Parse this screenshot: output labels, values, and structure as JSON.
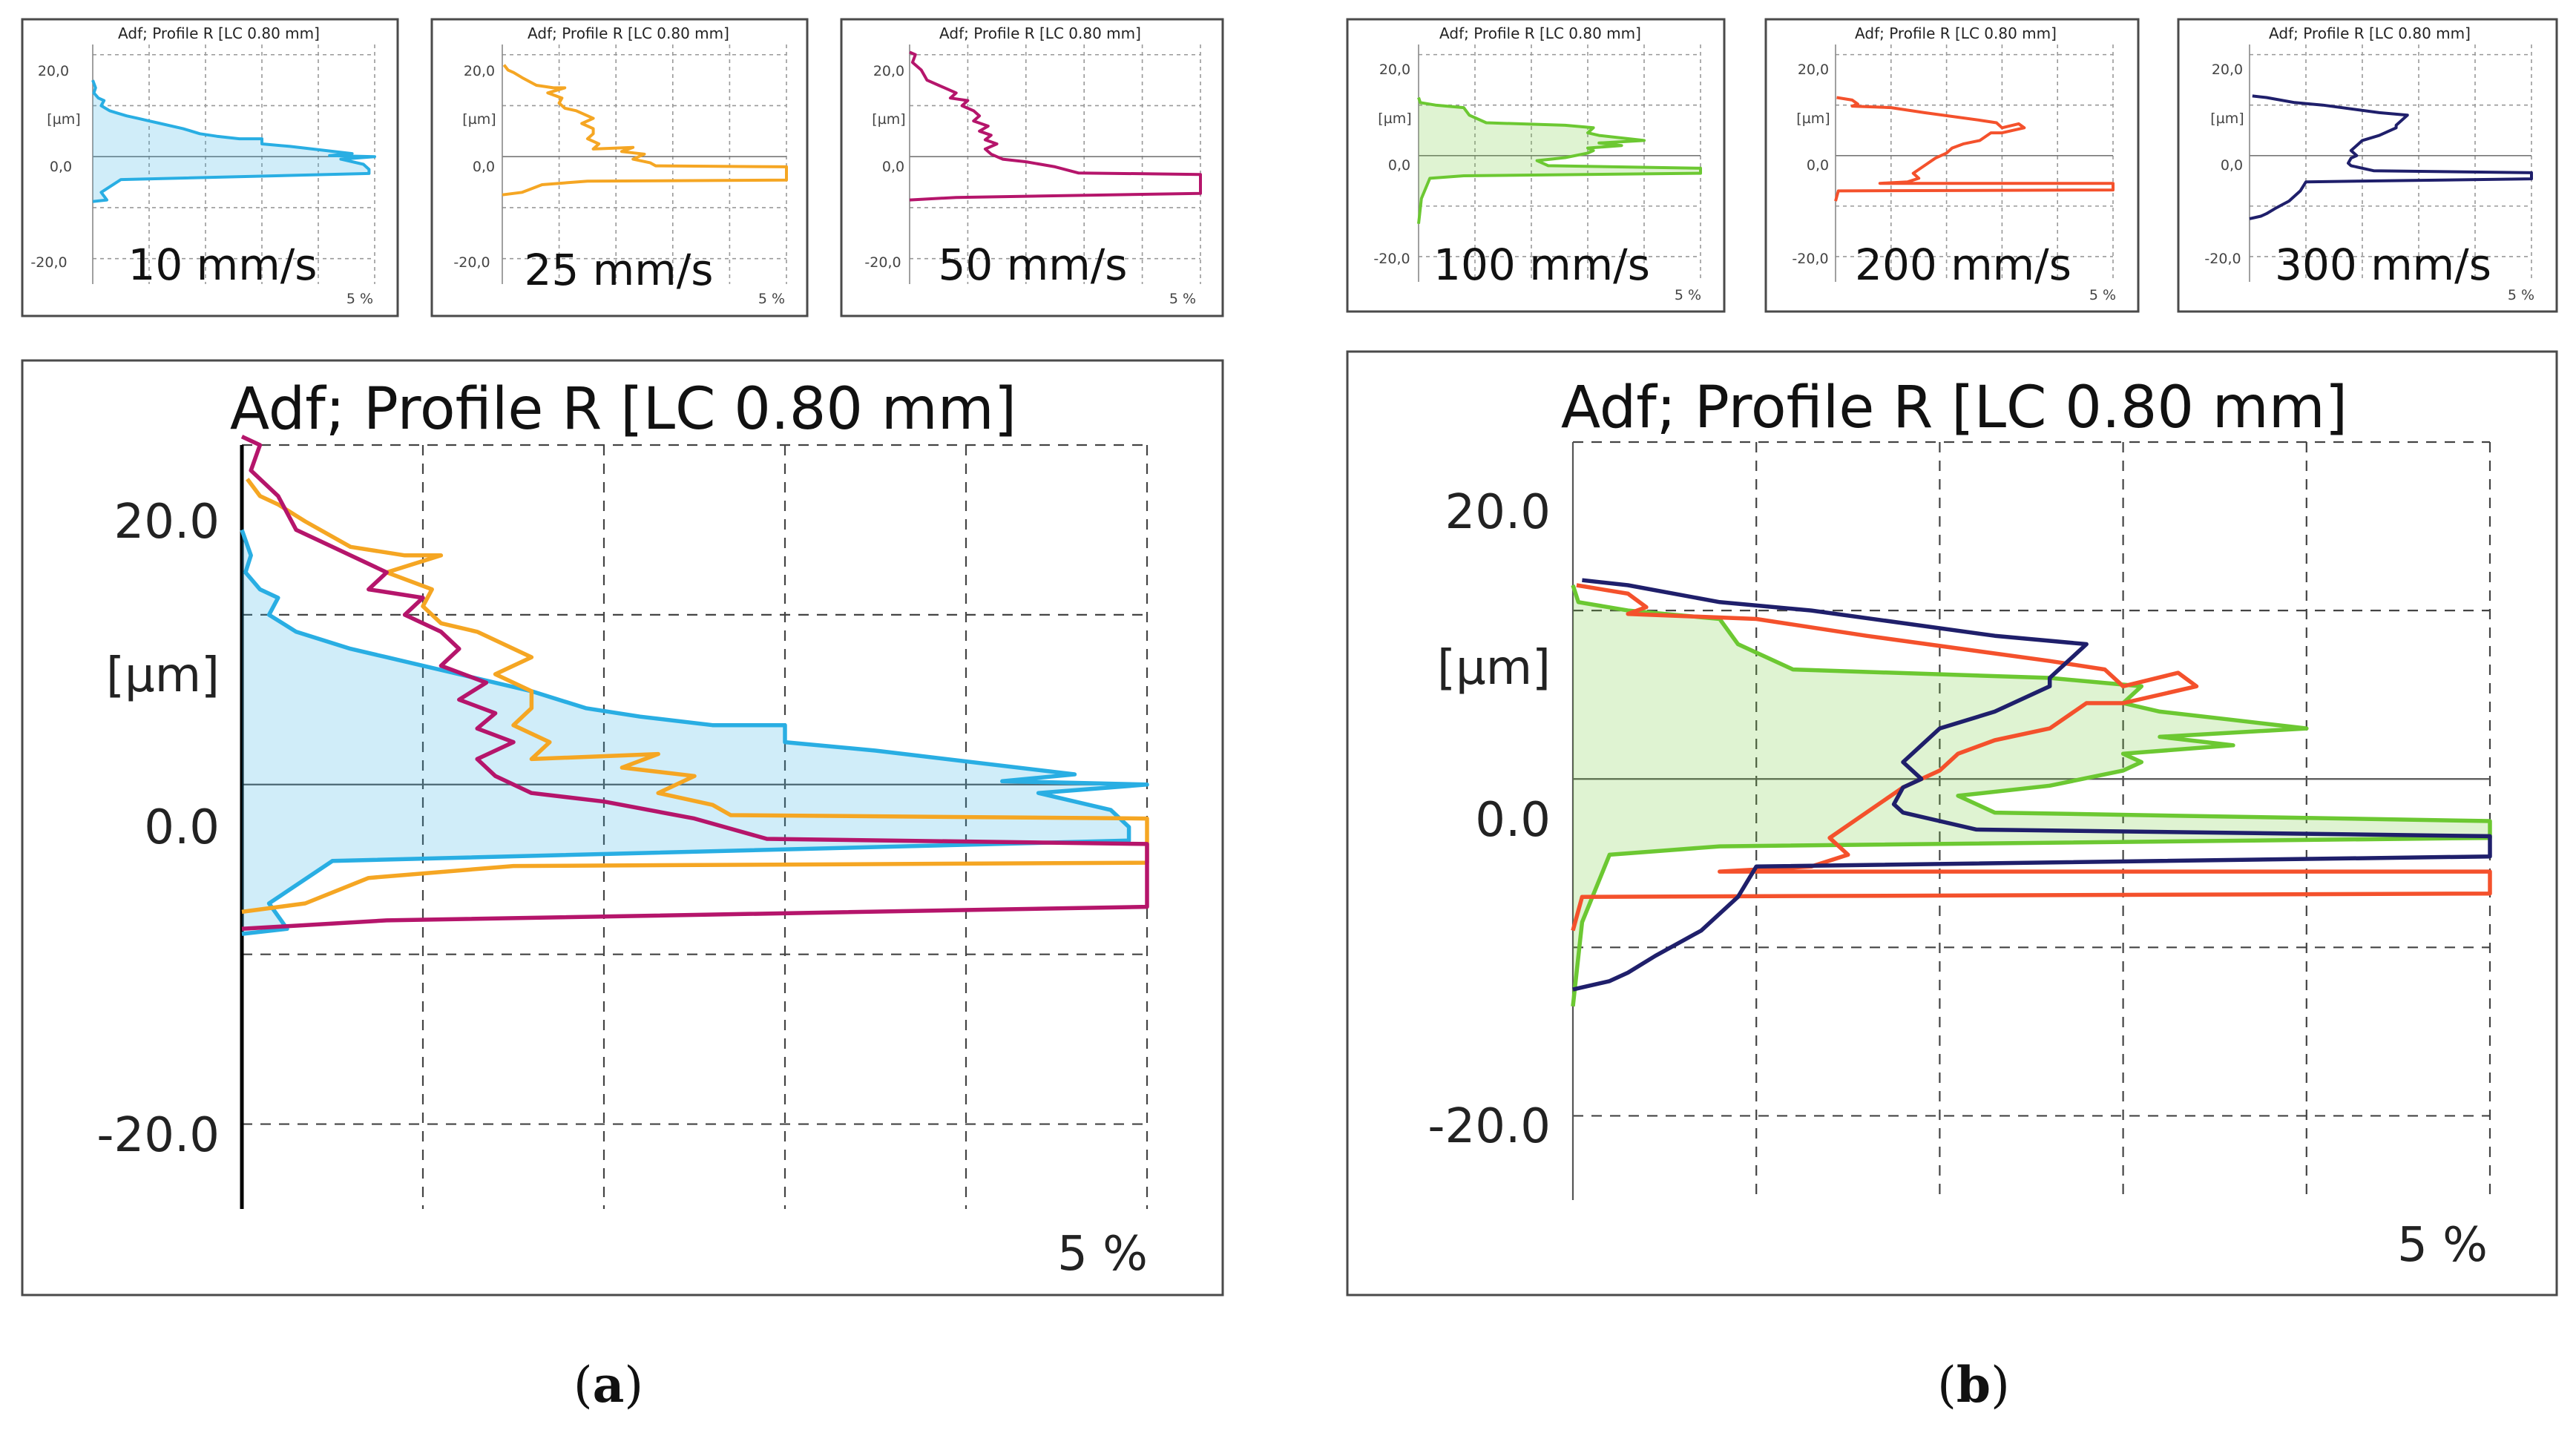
{
  "chart_data": [
    {
      "id": "a-10",
      "type": "line",
      "title": "Adf; Profile R [LC 0.80 mm]",
      "label": "10 mm/s",
      "ylabel": "[µm]",
      "y_ticks": [
        "20,0",
        "0,0",
        "-20,0"
      ],
      "x_tick": "5 %",
      "xlim": [
        0,
        5
      ],
      "ylim": [
        -25,
        22
      ],
      "series": [
        {
          "name": "10 mm/s",
          "color": "#29aee3",
          "fill": true,
          "points": [
            [
              0,
              15
            ],
            [
              0.05,
              13.5
            ],
            [
              0.02,
              12.5
            ],
            [
              0.1,
              11.5
            ],
            [
              0.2,
              11
            ],
            [
              0.15,
              10
            ],
            [
              0.3,
              9
            ],
            [
              0.45,
              8.5
            ],
            [
              0.6,
              8
            ],
            [
              0.8,
              7.5
            ],
            [
              1.0,
              7
            ],
            [
              1.2,
              6.5
            ],
            [
              1.6,
              5.5
            ],
            [
              1.9,
              4.5
            ],
            [
              2.2,
              4
            ],
            [
              2.6,
              3.5
            ],
            [
              3.0,
              3.5
            ],
            [
              3.0,
              2.5
            ],
            [
              3.5,
              2
            ],
            [
              4.6,
              0.6
            ],
            [
              4.2,
              0.2
            ],
            [
              5.0,
              0
            ],
            [
              4.4,
              -0.5
            ],
            [
              4.8,
              -1.5
            ],
            [
              4.9,
              -2.5
            ],
            [
              4.9,
              -3.3
            ],
            [
              0.5,
              -4.5
            ],
            [
              0.15,
              -7
            ],
            [
              0.25,
              -8.5
            ],
            [
              0,
              -8.8
            ]
          ]
        }
      ]
    },
    {
      "id": "a-25",
      "type": "line",
      "title": "Adf; Profile R [LC 0.80 mm]",
      "label": "25 mm/s",
      "ylabel": "[µm]",
      "y_ticks": [
        "20,0",
        "0,0",
        "-20,0"
      ],
      "x_tick": "5 %",
      "xlim": [
        0,
        5
      ],
      "ylim": [
        -25,
        22
      ],
      "series": [
        {
          "name": "25 mm/s",
          "color": "#f5a623",
          "fill": false,
          "points": [
            [
              0.03,
              18
            ],
            [
              0.1,
              17
            ],
            [
              0.2,
              16.5
            ],
            [
              0.35,
              15.5
            ],
            [
              0.6,
              14
            ],
            [
              0.9,
              13.5
            ],
            [
              1.1,
              13.5
            ],
            [
              0.8,
              12.5
            ],
            [
              1.05,
              11.5
            ],
            [
              1.0,
              10.5
            ],
            [
              1.1,
              9.5
            ],
            [
              1.3,
              9
            ],
            [
              1.6,
              7.5
            ],
            [
              1.4,
              6.5
            ],
            [
              1.6,
              5.5
            ],
            [
              1.6,
              4.5
            ],
            [
              1.5,
              3.5
            ],
            [
              1.7,
              2.5
            ],
            [
              1.6,
              1.5
            ],
            [
              2.3,
              1.8
            ],
            [
              2.1,
              1
            ],
            [
              2.5,
              0.5
            ],
            [
              2.3,
              -0.5
            ],
            [
              2.6,
              -1.2
            ],
            [
              2.7,
              -1.8
            ],
            [
              5.0,
              -2.0
            ],
            [
              5.0,
              -4.6
            ],
            [
              1.5,
              -4.8
            ],
            [
              0.7,
              -5.5
            ],
            [
              0.35,
              -7
            ],
            [
              0,
              -7.5
            ]
          ]
        }
      ]
    },
    {
      "id": "a-50",
      "type": "line",
      "title": "Adf; Profile R [LC 0.80 mm]",
      "label": "50 mm/s",
      "ylabel": "[µm]",
      "y_ticks": [
        "20,0",
        "0,0",
        "-20,0"
      ],
      "x_tick": "5 %",
      "xlim": [
        0,
        5
      ],
      "ylim": [
        -25,
        22
      ],
      "series": [
        {
          "name": "50 mm/s",
          "color": "#b5156b",
          "fill": false,
          "points": [
            [
              0,
              20.5
            ],
            [
              0.1,
              20
            ],
            [
              0.05,
              18.5
            ],
            [
              0.2,
              17
            ],
            [
              0.3,
              15
            ],
            [
              0.5,
              14
            ],
            [
              0.8,
              12.5
            ],
            [
              0.7,
              11.5
            ],
            [
              1.0,
              11
            ],
            [
              0.9,
              10
            ],
            [
              1.1,
              9
            ],
            [
              1.2,
              8
            ],
            [
              1.1,
              7
            ],
            [
              1.35,
              6
            ],
            [
              1.2,
              5
            ],
            [
              1.4,
              4.2
            ],
            [
              1.3,
              3.3
            ],
            [
              1.5,
              2.5
            ],
            [
              1.3,
              1.5
            ],
            [
              1.4,
              0.5
            ],
            [
              1.6,
              -0.5
            ],
            [
              2.0,
              -1.0
            ],
            [
              2.5,
              -2
            ],
            [
              2.9,
              -3.2
            ],
            [
              5.0,
              -3.5
            ],
            [
              5.0,
              -7.2
            ],
            [
              0.8,
              -8
            ],
            [
              0,
              -8.5
            ]
          ]
        }
      ]
    },
    {
      "id": "b-100",
      "type": "line",
      "title": "Adf; Profile R [LC 0.80 mm]",
      "label": "100 mm/s",
      "ylabel": "[µm]",
      "y_ticks": [
        "20,0",
        "0,0",
        "-20,0"
      ],
      "x_tick": "5 %",
      "xlim": [
        0,
        5
      ],
      "ylim": [
        -25,
        22
      ],
      "series": [
        {
          "name": "100 mm/s",
          "color": "#6cc832",
          "fill": true,
          "points": [
            [
              0,
              11.5
            ],
            [
              0.03,
              10.5
            ],
            [
              0.3,
              10
            ],
            [
              0.8,
              9.5
            ],
            [
              0.9,
              8
            ],
            [
              1.2,
              6.5
            ],
            [
              2.6,
              6
            ],
            [
              3.1,
              5.5
            ],
            [
              3.0,
              4.5
            ],
            [
              3.2,
              4
            ],
            [
              3.6,
              3.5
            ],
            [
              4.0,
              3
            ],
            [
              3.2,
              2.5
            ],
            [
              3.6,
              2
            ],
            [
              3.0,
              1.5
            ],
            [
              3.1,
              1.0
            ],
            [
              3.0,
              0.5
            ],
            [
              2.6,
              -0.4
            ],
            [
              2.1,
              -1
            ],
            [
              2.3,
              -2
            ],
            [
              5.0,
              -2.5
            ],
            [
              5.0,
              -3.5
            ],
            [
              0.8,
              -4
            ],
            [
              0.2,
              -4.5
            ],
            [
              0.05,
              -8.5
            ],
            [
              0,
              -13.5
            ]
          ]
        }
      ]
    },
    {
      "id": "b-200",
      "type": "line",
      "title": "Adf; Profile R [LC 0.80 mm]",
      "label": "200 mm/s",
      "ylabel": "[µm]",
      "y_ticks": [
        "20,0",
        "0,0",
        "-20,0"
      ],
      "x_tick": "5 %",
      "xlim": [
        0,
        5
      ],
      "ylim": [
        -25,
        22
      ],
      "series": [
        {
          "name": "200 mm/s",
          "color": "#f4512c",
          "fill": false,
          "points": [
            [
              0.02,
              11.5
            ],
            [
              0.3,
              11
            ],
            [
              0.4,
              10.2
            ],
            [
              0.3,
              9.8
            ],
            [
              1.0,
              9.5
            ],
            [
              1.6,
              8.5
            ],
            [
              2.6,
              7
            ],
            [
              2.9,
              6.5
            ],
            [
              3.0,
              5.5
            ],
            [
              3.3,
              6.3
            ],
            [
              3.4,
              5.5
            ],
            [
              3.0,
              4.5
            ],
            [
              2.8,
              4.5
            ],
            [
              2.6,
              3
            ],
            [
              2.3,
              2.3
            ],
            [
              2.1,
              1.5
            ],
            [
              2.0,
              0.5
            ],
            [
              1.8,
              -0.5
            ],
            [
              1.6,
              -2
            ],
            [
              1.4,
              -3.5
            ],
            [
              1.5,
              -4.5
            ],
            [
              1.3,
              -5.2
            ],
            [
              0.8,
              -5.5
            ],
            [
              5.0,
              -5.5
            ],
            [
              5.0,
              -6.8
            ],
            [
              0.05,
              -7
            ],
            [
              0,
              -9
            ]
          ]
        }
      ]
    },
    {
      "id": "b-300",
      "type": "line",
      "title": "Adf; Profile R [LC 0.80 mm]",
      "label": "300 mm/s",
      "ylabel": "[µm]",
      "y_ticks": [
        "20,0",
        "0,0",
        "-20,0"
      ],
      "x_tick": "5 %",
      "xlim": [
        0,
        5
      ],
      "ylim": [
        -25,
        22
      ],
      "series": [
        {
          "name": "300 mm/s",
          "color": "#1f1f6b",
          "fill": false,
          "points": [
            [
              0.05,
              11.8
            ],
            [
              0.3,
              11.5
            ],
            [
              0.8,
              10.5
            ],
            [
              1.3,
              10
            ],
            [
              2.3,
              8.5
            ],
            [
              2.8,
              8
            ],
            [
              2.6,
              6
            ],
            [
              2.6,
              5.5
            ],
            [
              2.3,
              4
            ],
            [
              2.0,
              3
            ],
            [
              1.9,
              2
            ],
            [
              1.8,
              1
            ],
            [
              1.9,
              0
            ],
            [
              1.8,
              -0.5
            ],
            [
              1.75,
              -1.5
            ],
            [
              1.8,
              -2
            ],
            [
              2.0,
              -2.5
            ],
            [
              2.2,
              -3
            ],
            [
              5.0,
              -3.4
            ],
            [
              5.0,
              -4.6
            ],
            [
              1.0,
              -5.2
            ],
            [
              0.9,
              -7
            ],
            [
              0.7,
              -9
            ],
            [
              0.45,
              -10.5
            ],
            [
              0.3,
              -11.5
            ],
            [
              0.2,
              -12
            ],
            [
              0,
              -12.5
            ]
          ]
        }
      ]
    },
    {
      "id": "a-combined",
      "type": "line",
      "title": "Adf; Profile R [LC 0.80 mm]",
      "ylabel": "[µm]",
      "y_ticks": [
        "20.0",
        "0.0",
        "-20.0"
      ],
      "x_tick": "5 %",
      "xlim": [
        0,
        5
      ],
      "ylim": [
        -25,
        20
      ],
      "series": [
        {
          "name": "10 mm/s",
          "ref": "a-10"
        },
        {
          "name": "25 mm/s",
          "ref": "a-25"
        },
        {
          "name": "50 mm/s",
          "ref": "a-50"
        }
      ]
    },
    {
      "id": "b-combined",
      "type": "line",
      "title": "Adf; Profile R [LC 0.80 mm]",
      "ylabel": "[µm]",
      "y_ticks": [
        "20.0",
        "0.0",
        "-20.0"
      ],
      "x_tick": "5 %",
      "xlim": [
        0,
        5
      ],
      "ylim": [
        -25,
        20
      ],
      "series": [
        {
          "name": "100 mm/s",
          "ref": "b-100"
        },
        {
          "name": "200 mm/s",
          "ref": "b-200"
        },
        {
          "name": "300 mm/s",
          "ref": "b-300"
        }
      ]
    }
  ],
  "captions": {
    "a": {
      "open": "(",
      "letter": "a",
      "close": ")"
    },
    "b": {
      "open": "(",
      "letter": "b",
      "close": ")"
    }
  }
}
